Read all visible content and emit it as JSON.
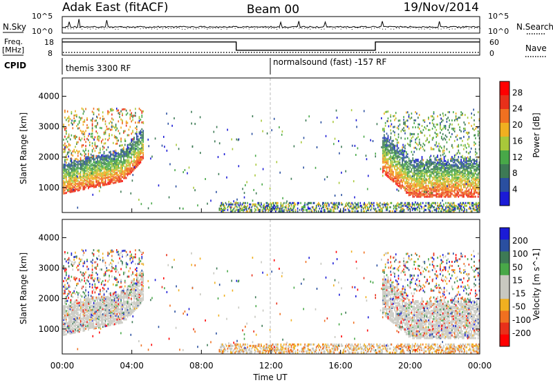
{
  "header": {
    "station": "Adak East (fitACF)",
    "beam": "Beam 00",
    "date": "19/Nov/2014"
  },
  "colors": {
    "power_scale": [
      "#1b1bd6",
      "#2a4fa0",
      "#3d7a55",
      "#48a848",
      "#a8c83a",
      "#f0b020",
      "#f07020",
      "#e8301a",
      "#ff0000"
    ],
    "velocity_scale": [
      "#1b1bd6",
      "#2a4fa0",
      "#3d7a55",
      "#48a848",
      "#c8c8c0",
      "#c8c8c0",
      "#f0b020",
      "#f07020",
      "#e8301a",
      "#ff0000"
    ]
  },
  "chart_data": [
    {
      "type": "line",
      "name": "noise-panel",
      "left_label": "N.Sky",
      "right_label": "N.Search",
      "left_ticks": [
        "10^5",
        "10^0"
      ],
      "right_ticks": [
        "10^5",
        "10^0"
      ]
    },
    {
      "type": "line",
      "name": "frequency-panel",
      "left_label_top": "Freq.",
      "left_label_bottom": "[MHz]",
      "right_label": "Nave",
      "left_ticks": [
        "18",
        "8"
      ],
      "right_ticks": [
        "60",
        "0"
      ],
      "frequency_steps": [
        {
          "start_hour": 0,
          "end_hour": 10,
          "value": 16
        },
        {
          "start_hour": 10,
          "end_hour": 18,
          "value": 11
        },
        {
          "start_hour": 18,
          "end_hour": 24,
          "value": 16
        }
      ]
    },
    {
      "type": "table",
      "name": "cpid-row",
      "label": "CPID",
      "programs": [
        {
          "start_hour": 0,
          "text": "themis 3300 RF"
        },
        {
          "start_hour": 12,
          "text": "normalsound (fast) -157 RF"
        }
      ]
    },
    {
      "type": "heatmap",
      "name": "power-panel",
      "ylabel": "Slant Range [km]",
      "yticks": [
        "1000",
        "2000",
        "3000",
        "4000"
      ],
      "ylim": [
        180,
        4600
      ],
      "xlim": [
        0,
        24
      ],
      "colorbar_label": "Power [dB]",
      "colorbar_ticks": [
        "4",
        "8",
        "12",
        "16",
        "20",
        "24",
        "28"
      ]
    },
    {
      "type": "heatmap",
      "name": "velocity-panel",
      "ylabel": "Slant Range [km]",
      "yticks": [
        "1000",
        "2000",
        "3000",
        "4000"
      ],
      "ylim": [
        180,
        4600
      ],
      "xlim": [
        0,
        24
      ],
      "xlabel": "Time UT",
      "xticks": [
        "00:00",
        "04:00",
        "08:00",
        "12:00",
        "16:00",
        "20:00",
        "00:00"
      ],
      "colorbar_label": "Velocity [m s^-1]",
      "colorbar_ticks": [
        "200",
        "100",
        "50",
        "15",
        "-15",
        "-50",
        "-100",
        "-200"
      ]
    }
  ]
}
